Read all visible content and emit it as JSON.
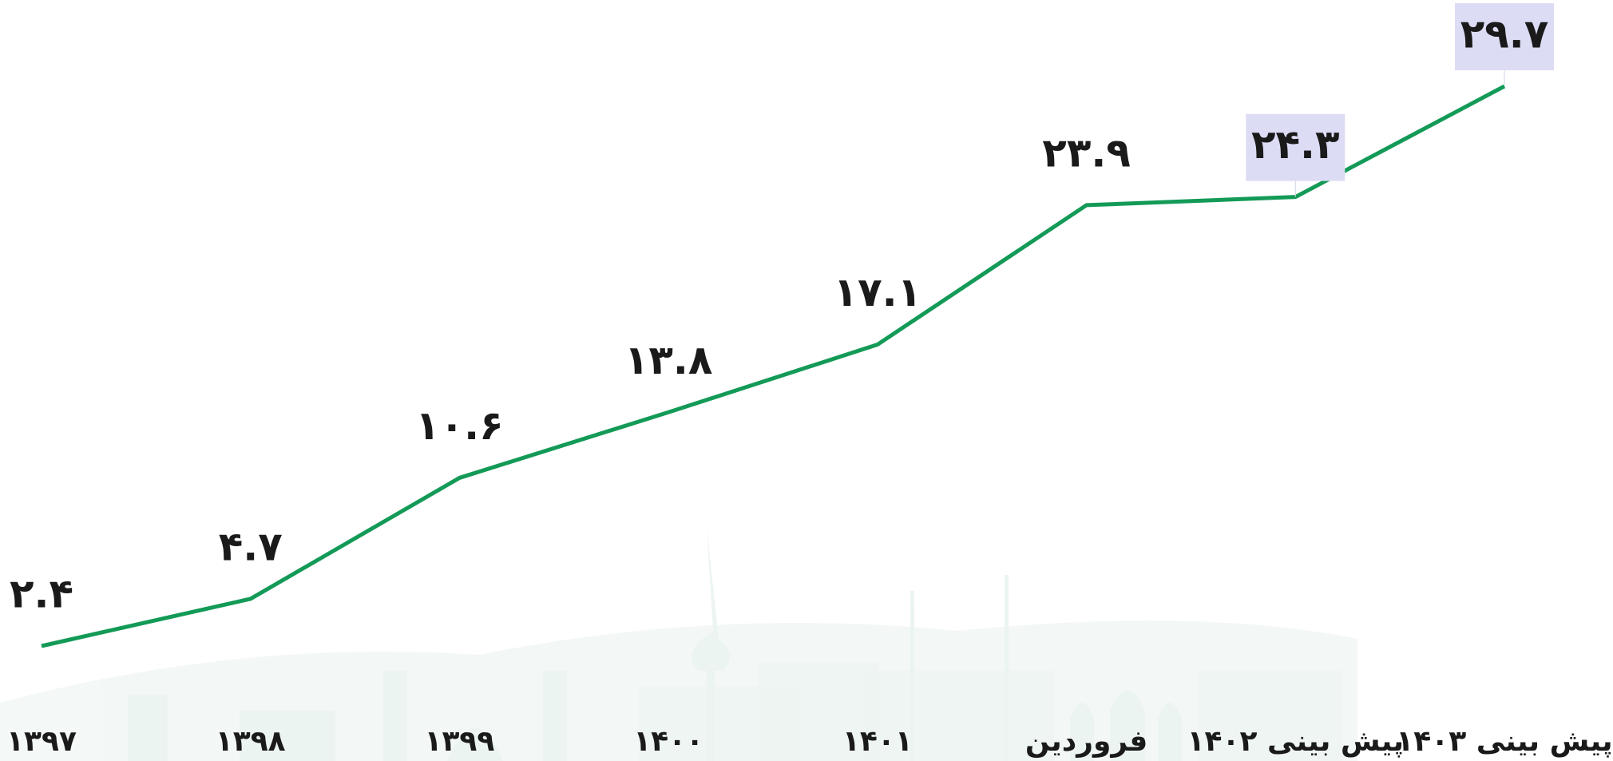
{
  "chart_data": {
    "type": "line",
    "categories": [
      "۱۳۹۷",
      "۱۳۹۸",
      "۱۳۹۹",
      "۱۴۰۰",
      "۱۴۰۱",
      "فروردین",
      "پیش بینی ۱۴۰۲",
      "پیش بینی ۱۴۰۳"
    ],
    "values": [
      2.4,
      4.7,
      10.6,
      13.8,
      17.1,
      23.9,
      24.3,
      29.7
    ],
    "value_labels": [
      "۲.۴",
      "۴.۷",
      "۱۰.۶",
      "۱۳.۸",
      "۱۷.۱",
      "۲۳.۹",
      "۲۴.۳",
      "۲۹.۷"
    ],
    "color": "#139a57",
    "label_highlight": {
      "color": "#dcdcf5",
      "indices": [
        6,
        7
      ]
    }
  }
}
